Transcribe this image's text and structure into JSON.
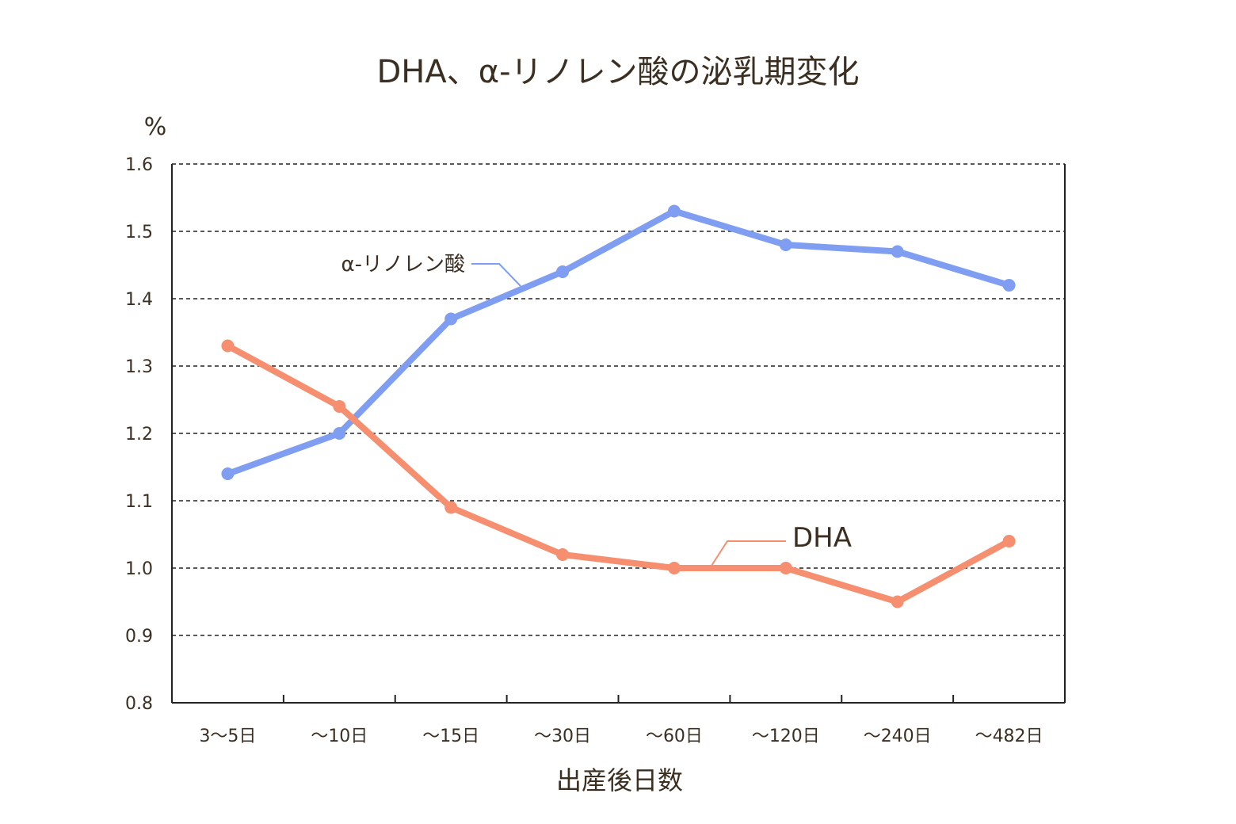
{
  "chart_data": {
    "type": "line",
    "title": "DHA、α-リノレン酸の泌乳期変化",
    "xlabel": "出産後日数",
    "ylabel": "%",
    "categories": [
      "3〜5日",
      "〜10日",
      "〜15日",
      "〜30日",
      "〜60日",
      "〜120日",
      "〜240日",
      "〜482日"
    ],
    "ylim": [
      0.8,
      1.6
    ],
    "yticks": [
      "0.8",
      "0.9",
      "1.0",
      "1.1",
      "1.2",
      "1.3",
      "1.4",
      "1.5",
      "1.6"
    ],
    "grid": true,
    "grid_style": "dashed",
    "series": [
      {
        "name": "α-リノレン酸",
        "color": "#7f9ef2",
        "values": [
          1.14,
          1.2,
          1.37,
          1.44,
          1.53,
          1.48,
          1.47,
          1.42
        ]
      },
      {
        "name": "DHA",
        "color": "#f58f6f",
        "values": [
          1.33,
          1.24,
          1.09,
          1.02,
          1.0,
          1.0,
          0.95,
          1.04
        ]
      }
    ]
  }
}
